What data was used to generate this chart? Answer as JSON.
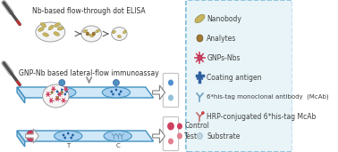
{
  "title_top": "Nb-based flow-through dot ELISA",
  "title_bottom": "GNP-Nb based lateral-flow immunoassay",
  "legend_items": [
    {
      "label": "Nanobody",
      "color": "#c8b560",
      "shape": "ellipse"
    },
    {
      "label": "Analytes",
      "color": "#a07830",
      "shape": "circle"
    },
    {
      "label": "GNPs-Nbs",
      "color": "#d04060",
      "shape": "starburst"
    },
    {
      "label": "Coating antigen",
      "color": "#3060a0",
      "shape": "cross"
    },
    {
      "label": "6*his-tag monoclonal antibody  (McAb)",
      "color": "#70a0c0",
      "shape": "Y"
    },
    {
      "label": "HRP-conjugated 6*his-tag McAb",
      "color": "#c07070",
      "shape": "Y_hrp"
    },
    {
      "label": "Substrate",
      "color": "#b0c8d8",
      "shape": "circle_small"
    }
  ],
  "control_color": "#d04060",
  "test_color": "#e08090",
  "bg_color": "#f0f8ff",
  "legend_bg": "#e8f4f8",
  "plate_color": "#4090c0",
  "plate_bg": "#d0e8f8"
}
